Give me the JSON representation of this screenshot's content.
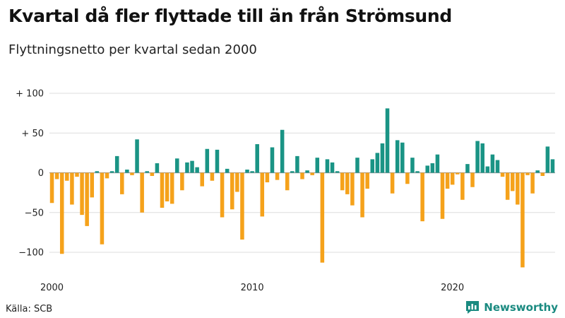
{
  "header": {
    "title": "Kvartal då fler flyttade till än från Strömsund",
    "subtitle": "Flyttningsnetto per kvartal sedan 2000"
  },
  "footer": {
    "source": "Källa: SCB",
    "brand": "Newsworthy"
  },
  "colors": {
    "positive": "#1a9485",
    "negative": "#f5a21b",
    "brand": "#1a8a80"
  },
  "icons": {
    "brand": "bar-chart-speech-bubble-icon"
  },
  "chart_data": {
    "type": "bar",
    "title": "Kvartal då fler flyttade till än från Strömsund",
    "subtitle": "Flyttningsnetto per kvartal sedan 2000",
    "xlabel": "",
    "ylabel": "",
    "ylim": [
      -125,
      105
    ],
    "grid": true,
    "legend": "none",
    "x_start": "2000-Q1",
    "yticks": [
      {
        "value": 100,
        "label": "+ 100"
      },
      {
        "value": 50,
        "label": "+  50"
      },
      {
        "value": 0,
        "label": "0"
      },
      {
        "value": -50,
        "label": "−50"
      },
      {
        "value": -100,
        "label": "−100"
      }
    ],
    "xticks": [
      {
        "value": "2000-Q1",
        "label": "2000"
      },
      {
        "value": "2010-Q1",
        "label": "2010"
      },
      {
        "value": "2020-Q1",
        "label": "2020"
      }
    ],
    "values": [
      -38,
      -8,
      -102,
      -10,
      -40,
      -5,
      -53,
      -67,
      -31,
      2,
      -90,
      -7,
      2,
      21,
      -27,
      4,
      -3,
      42,
      -50,
      2,
      -4,
      12,
      -44,
      -36,
      -39,
      18,
      -22,
      13,
      15,
      7,
      -17,
      30,
      -10,
      29,
      -56,
      5,
      -46,
      -24,
      -84,
      4,
      2,
      36,
      -55,
      -12,
      32,
      -9,
      54,
      -22,
      2,
      21,
      -8,
      3,
      -3,
      19,
      -113,
      17,
      13,
      2,
      -22,
      -27,
      -41,
      19,
      -56,
      -20,
      17,
      25,
      37,
      81,
      -26,
      41,
      38,
      -14,
      19,
      2,
      -61,
      9,
      12,
      23,
      -58,
      -20,
      -15,
      -2,
      -34,
      11,
      -18,
      40,
      37,
      8,
      23,
      16,
      -5,
      -34,
      -23,
      -40,
      -119,
      -3,
      -26,
      3,
      -4,
      33,
      17
    ]
  }
}
